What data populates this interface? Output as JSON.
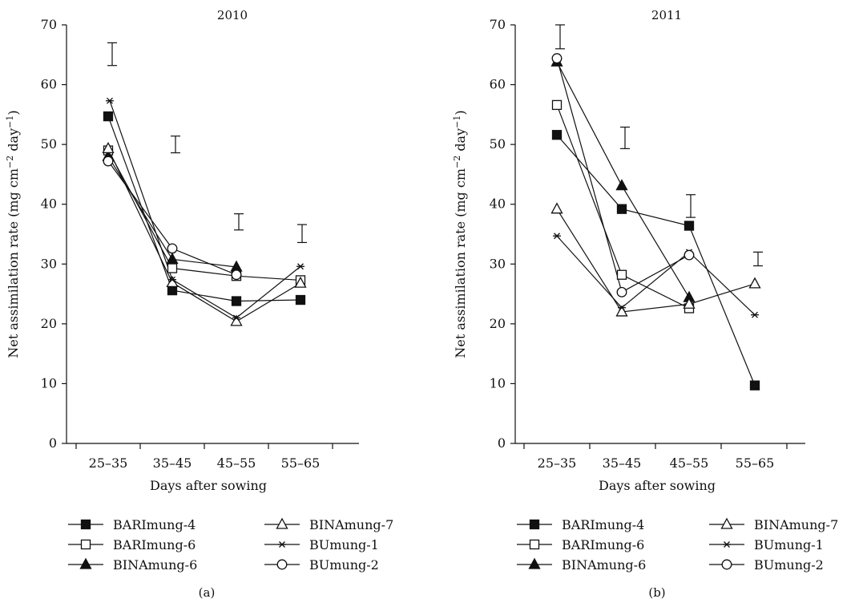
{
  "figure": {
    "marker_legend": {
      "BARImung-4": "filled-square",
      "BARImung-6": "open-square",
      "BINAmung-6": "filled-triangle",
      "BINAmung-7": "open-triangle",
      "BUmung-1": "asterisk",
      "BUmung-2": "open-circle"
    },
    "line_color": "#111111"
  },
  "chart_data": [
    {
      "type": "line",
      "title": "2010",
      "caption": "(a)",
      "xlabel": "Days after sowing",
      "ylabel": "Net assimilation rate (mg cm⁻² day⁻¹)",
      "ylabel_main": "Net assimilation rate (mg cm",
      "ylabel_exp1": "−2",
      "ylabel_mid": " day",
      "ylabel_exp2": "−1",
      "ylabel_end": ")",
      "categories": [
        "25–35",
        "35–45",
        "45–55",
        "55–65"
      ],
      "ylim": [
        0,
        70
      ],
      "yticks": [
        "0",
        "10",
        "20",
        "30",
        "40",
        "50",
        "60",
        "70"
      ],
      "grid": false,
      "legend_position": "below",
      "series": [
        {
          "name": "BARImung-4",
          "values": [
            54.7,
            25.6,
            23.8,
            24.0
          ]
        },
        {
          "name": "BARImung-6",
          "values": [
            49.0,
            29.3,
            28.0,
            27.3
          ]
        },
        {
          "name": "BINAmung-6",
          "values": [
            48.0,
            30.8,
            29.5,
            null
          ]
        },
        {
          "name": "BINAmung-7",
          "values": [
            49.3,
            26.9,
            20.4,
            26.8
          ]
        },
        {
          "name": "BUmung-1",
          "values": [
            57.3,
            27.4,
            21.0,
            29.6
          ]
        },
        {
          "name": "BUmung-2",
          "values": [
            47.2,
            32.6,
            28.2,
            null
          ]
        }
      ],
      "error_bars": [
        {
          "category": "25–35",
          "low": 63.2,
          "high": 67.0
        },
        {
          "category": "35–45",
          "low": 48.6,
          "high": 51.4
        },
        {
          "category": "45–55",
          "low": 35.7,
          "high": 38.4
        },
        {
          "category": "55–65",
          "low": 33.6,
          "high": 36.6
        }
      ]
    },
    {
      "type": "line",
      "title": "2011",
      "caption": "(b)",
      "xlabel": "Days after sowing",
      "ylabel": "Net assimilation rate (mg cm⁻² day⁻¹)",
      "ylabel_main": "Net assimilation rate (mg cm",
      "ylabel_exp1": "−2",
      "ylabel_mid": " day",
      "ylabel_exp2": "−1",
      "ylabel_end": ")",
      "categories": [
        "25–35",
        "35–45",
        "45–55",
        "55–65"
      ],
      "ylim": [
        0,
        70
      ],
      "yticks": [
        "0",
        "10",
        "20",
        "30",
        "40",
        "50",
        "60",
        "70"
      ],
      "grid": false,
      "legend_position": "below",
      "series": [
        {
          "name": "BARImung-4",
          "values": [
            51.6,
            39.2,
            36.4,
            9.7
          ]
        },
        {
          "name": "BARImung-6",
          "values": [
            56.6,
            28.2,
            22.6,
            null
          ]
        },
        {
          "name": "BINAmung-6",
          "values": [
            63.8,
            43.1,
            24.4,
            null
          ]
        },
        {
          "name": "BINAmung-7",
          "values": [
            39.2,
            22.0,
            23.3,
            26.7
          ]
        },
        {
          "name": "BUmung-1",
          "values": [
            34.7,
            22.7,
            32.0,
            21.5
          ]
        },
        {
          "name": "BUmung-2",
          "values": [
            64.4,
            25.3,
            31.5,
            null
          ]
        }
      ],
      "error_bars": [
        {
          "category": "25–35",
          "low": 66.0,
          "high": 70.0
        },
        {
          "category": "35–45",
          "low": 49.3,
          "high": 52.9
        },
        {
          "category": "45–55",
          "low": 37.8,
          "high": 41.6
        },
        {
          "category": "55–65",
          "low": 29.7,
          "high": 32.0
        }
      ]
    }
  ]
}
